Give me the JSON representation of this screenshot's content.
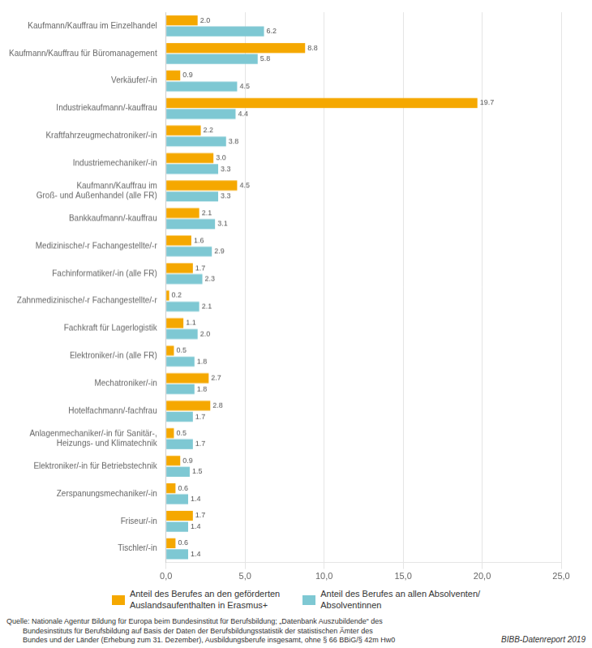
{
  "chart_data": {
    "type": "bar",
    "orientation": "horizontal",
    "categories": [
      "Kaufmann/Kauffrau im Einzelhandel",
      "Kaufmann/Kauffrau für Büromanagement",
      "Verkäufer/-in",
      "Industriekaufmann/-kauffrau",
      "Kraftfahrzeugmechatroniker/-in",
      "Industriemechaniker/-in",
      "Kaufmann/Kauffrau im\nGroß- und Außenhandel (alle FR)",
      "Bankkaufmann/-kauffrau",
      "Medizinische/-r Fachangestellte/-r",
      "Fachinformatiker/-in (alle FR)",
      "Zahnmedizinische/-r Fachangestellte/-r",
      "Fachkraft für Lagerlogistik",
      "Elektroniker/-in (alle FR)",
      "Mechatroniker/-in",
      "Hotelfachmann/-fachfrau",
      "Anlagenmechaniker/-in für Sanitär-,\nHeizungs- und Klimatechnik",
      "Elektroniker/-in für Betriebstechnik",
      "Zerspanungsmechaniker/-in",
      "Friseur/-in",
      "Tischler/-in"
    ],
    "series": [
      {
        "name": "Anteil des Berufes an den geförderten\nAuslandsaufenthalten in Erasmus+",
        "color": "#F5A800",
        "values": [
          2.0,
          8.8,
          0.9,
          19.7,
          2.2,
          3.0,
          4.5,
          2.1,
          1.6,
          1.7,
          0.2,
          1.1,
          0.5,
          2.7,
          2.8,
          0.5,
          0.9,
          0.6,
          1.7,
          0.6
        ],
        "value_labels": [
          "2.0",
          "8.8",
          "0.9",
          "19.7",
          "2.2",
          "3.0",
          "4.5",
          "2.1",
          "1.6",
          "1.7",
          "0.2",
          "1.1",
          "0.5",
          "2.7",
          "2.8",
          "0.5",
          "0.9",
          "0.6",
          "1.7",
          "0.6"
        ]
      },
      {
        "name": "Anteil des Berufes an allen Absolventen/\nAbsolventinnen",
        "color": "#7EC8D3",
        "values": [
          6.2,
          5.8,
          4.5,
          4.4,
          3.8,
          3.3,
          3.3,
          3.1,
          2.9,
          2.3,
          2.1,
          2.0,
          1.8,
          1.8,
          1.7,
          1.7,
          1.5,
          1.4,
          1.4,
          1.4
        ],
        "value_labels": [
          "6.2",
          "5.8",
          "4.5",
          "4.4",
          "3.8",
          "3.3",
          "3.3",
          "3.1",
          "2.9",
          "2.3",
          "2.1",
          "2.0",
          "1.8",
          "1.8",
          "1.7",
          "1.7",
          "1.5",
          "1.4",
          "1.4",
          "1.4"
        ]
      }
    ],
    "xlim": [
      0,
      25.0
    ],
    "xticks": [
      {
        "value": 0.0,
        "label": "0,0"
      },
      {
        "value": 5.0,
        "label": "5,0"
      },
      {
        "value": 10.0,
        "label": "10,0"
      },
      {
        "value": 15.0,
        "label": "15,0"
      },
      {
        "value": 20.0,
        "label": "20,0"
      },
      {
        "value": 25.0,
        "label": "25,0"
      }
    ],
    "grid": true,
    "legend": "bottom",
    "data_labels": true,
    "annotations": [
      "Quelle: Nationale Agentur Bildung für Europa beim Bundesinstitut für Berufsbildung; „Datenbank Auszubildende“ des\n        Bundesinstituts für Berufsbildung auf Basis der Daten der Berufsbildungsstatistik der statistischen Ämter des\n        Bundes und der Länder (Erhebung zum 31. Dezember), Ausbildungsberufe insgesamt, ohne § 66 BBiG/§ 42m Hw0",
      "BIBB-Datenreport 2019"
    ]
  }
}
